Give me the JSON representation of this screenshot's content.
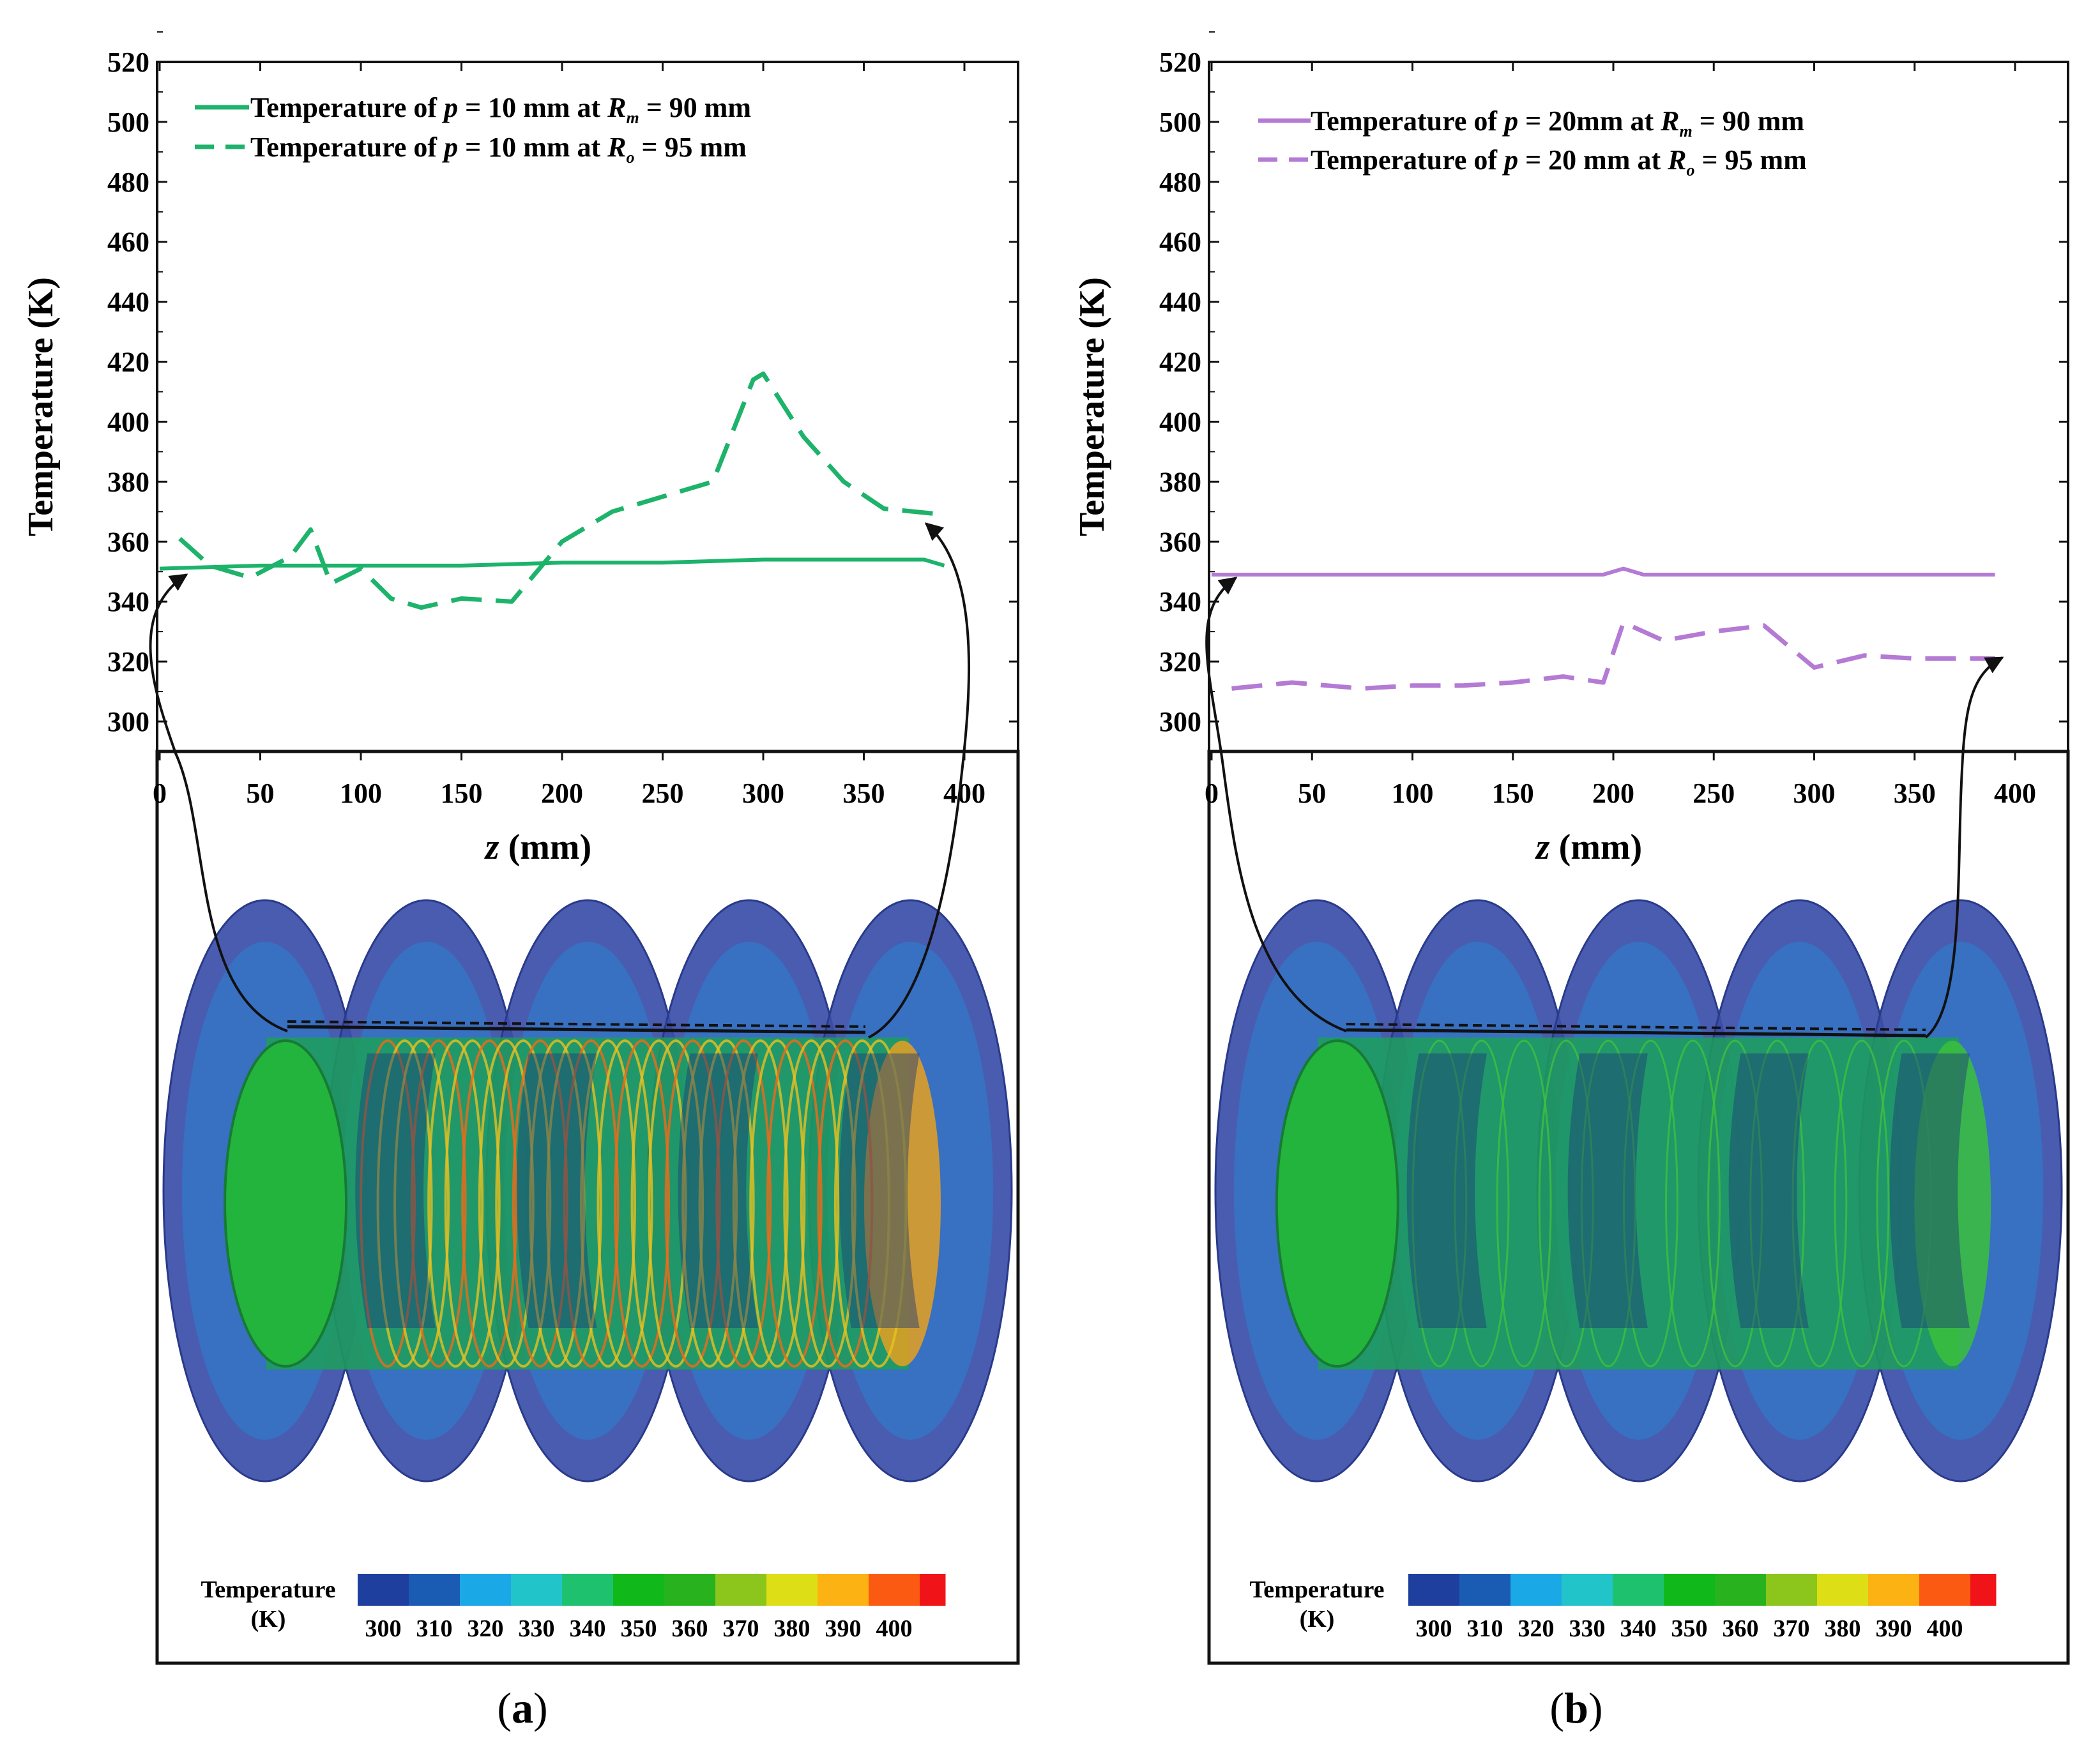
{
  "chart_data": [
    {
      "type": "line",
      "panel_label": "a",
      "xlabel_var": "z",
      "xlabel_unit": " (mm)",
      "ylabel": "Temperature (K)",
      "xlim": [
        0,
        400
      ],
      "ylim": [
        290,
        520
      ],
      "xticks": [
        0,
        50,
        100,
        150,
        200,
        250,
        300,
        350,
        400
      ],
      "yticks": [
        300,
        320,
        340,
        360,
        380,
        400,
        420,
        440,
        460,
        480,
        500,
        520
      ],
      "color": "#1db36b",
      "legend_position": "top-left",
      "series": [
        {
          "legend_prefix": "Temperature of ",
          "legend_var1": "p",
          "legend_mid": " = 10 mm at ",
          "legend_var2": "R",
          "legend_sub": "m",
          "legend_suffix": " = 90 mm",
          "style": "solid",
          "x": [
            0,
            50,
            100,
            150,
            200,
            250,
            300,
            350,
            380,
            390
          ],
          "y": [
            351,
            352,
            352,
            352,
            353,
            353,
            354,
            354,
            354,
            352
          ]
        },
        {
          "legend_prefix": "Temperature of ",
          "legend_var1": "p",
          "legend_mid": " = 10 mm at ",
          "legend_var2": "R",
          "legend_sub": "o",
          "legend_suffix": " = 95 mm",
          "style": "dashed",
          "x": [
            10,
            25,
            45,
            65,
            75,
            85,
            100,
            115,
            130,
            150,
            175,
            200,
            225,
            250,
            275,
            295,
            300,
            320,
            340,
            360,
            390
          ],
          "y": [
            361,
            352,
            348,
            355,
            364,
            346,
            351,
            341,
            338,
            341,
            340,
            360,
            370,
            375,
            380,
            414,
            416,
            395,
            380,
            371,
            369
          ]
        }
      ],
      "colorbar": {
        "title_line1": "Temperature",
        "title_line2": "(K)",
        "labels": [
          "300",
          "310",
          "320",
          "330",
          "340",
          "350",
          "360",
          "370",
          "380",
          "390",
          "400"
        ],
        "colors": [
          "#1e3f9e",
          "#1a5cb4",
          "#1aa8e6",
          "#21c4c9",
          "#1ec26e",
          "#10b81a",
          "#27b21e",
          "#8cc61c",
          "#dede16",
          "#fbb212",
          "#fb5a12",
          "#f01418"
        ]
      }
    },
    {
      "type": "line",
      "panel_label": "b",
      "xlabel_var": "z",
      "xlabel_unit": " (mm)",
      "ylabel": "Temperature (K)",
      "xlim": [
        0,
        400
      ],
      "ylim": [
        290,
        520
      ],
      "xticks": [
        0,
        50,
        100,
        150,
        200,
        250,
        300,
        350,
        400
      ],
      "yticks": [
        300,
        320,
        340,
        360,
        380,
        400,
        420,
        440,
        460,
        480,
        500,
        520
      ],
      "color": "#b47ad4",
      "legend_position": "top-left",
      "series": [
        {
          "legend_prefix": "Temperature of ",
          "legend_var1": "p",
          "legend_mid": " = 20mm at ",
          "legend_var2": "R",
          "legend_sub": "m",
          "legend_suffix": " = 90 mm",
          "style": "solid",
          "x": [
            0,
            50,
            100,
            150,
            195,
            205,
            215,
            250,
            300,
            350,
            390
          ],
          "y": [
            349,
            349,
            349,
            349,
            349,
            351,
            349,
            349,
            349,
            349,
            349
          ]
        },
        {
          "legend_prefix": "Temperature of ",
          "legend_var1": "p",
          "legend_mid": " = 20 mm at ",
          "legend_var2": "R",
          "legend_sub": "o",
          "legend_suffix": " = 95 mm",
          "style": "dashed",
          "x": [
            10,
            40,
            75,
            100,
            125,
            150,
            175,
            195,
            205,
            225,
            250,
            275,
            300,
            325,
            350,
            390
          ],
          "y": [
            311,
            313,
            311,
            312,
            312,
            313,
            315,
            313,
            333,
            327,
            330,
            332,
            318,
            322,
            321,
            321
          ]
        }
      ],
      "colorbar": {
        "title_line1": "Temperature",
        "title_line2": "(K)",
        "labels": [
          "300",
          "310",
          "320",
          "330",
          "340",
          "350",
          "360",
          "370",
          "380",
          "390",
          "400"
        ],
        "colors": [
          "#1e3f9e",
          "#1a5cb4",
          "#1aa8e6",
          "#21c4c9",
          "#1ec26e",
          "#10b81a",
          "#27b21e",
          "#8cc61c",
          "#dede16",
          "#fbb212",
          "#fb5a12",
          "#f01418"
        ]
      }
    }
  ]
}
